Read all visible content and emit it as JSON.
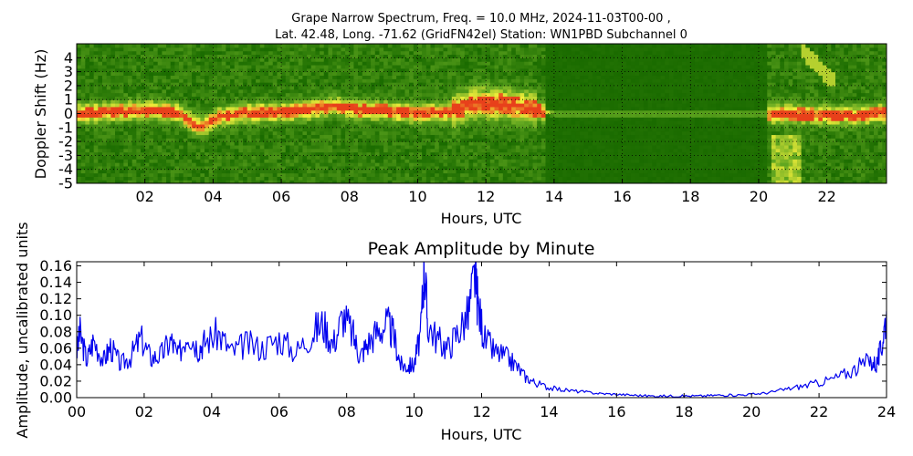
{
  "figure": {
    "title_line1": "Grape Narrow Spectrum, Freq. = 10.0 MHz, 2024-11-03T00-00 ,",
    "title_line2": "Lat.  42.48, Long. -71.62 (GridFN42el) Station: WN1PBD Subchannel 0"
  },
  "chart_data": [
    {
      "type": "heatmap",
      "ylabel": "Doppler Shift (Hz)",
      "xlabel": "Hours, UTC",
      "xlim": [
        0,
        23.75
      ],
      "ylim": [
        -5,
        5
      ],
      "xticks": [
        "02",
        "04",
        "06",
        "08",
        "10",
        "12",
        "14",
        "16",
        "18",
        "20",
        "22"
      ],
      "xtick_values": [
        2,
        4,
        6,
        8,
        10,
        12,
        14,
        16,
        18,
        20,
        22
      ],
      "yticks": [
        "4",
        "3",
        "2",
        "1",
        "0",
        "-1",
        "-2",
        "-3",
        "-4",
        "-5"
      ],
      "ytick_values": [
        4,
        3,
        2,
        1,
        0,
        -1,
        -2,
        -3,
        -4,
        -5
      ],
      "grid": "dotted",
      "colors": {
        "low": "#1a6b00",
        "mid": "#63a821",
        "high": "#f2ee3a",
        "peak": "#e8401b"
      },
      "trace": {
        "hours": [
          0,
          1,
          2,
          3,
          3.6,
          4.2,
          5,
          6,
          7,
          7.5,
          8.3,
          9,
          10,
          11,
          11.7,
          12.5,
          13.5,
          14,
          16,
          18,
          20,
          21,
          22,
          23,
          23.75
        ],
        "doppler": [
          0,
          0.15,
          0.3,
          0.1,
          -1.0,
          -0.2,
          0.1,
          0.1,
          0.35,
          0.6,
          0.25,
          0.25,
          0.0,
          0.15,
          0.8,
          0.7,
          0.3,
          0.0,
          0.0,
          0.0,
          0.0,
          0.0,
          -0.1,
          -0.1,
          0.1
        ]
      }
    },
    {
      "type": "line",
      "title": "Peak Amplitude by Minute",
      "xlabel": "Hours, UTC",
      "ylabel": "Amplitude, uncalibrated units",
      "xlim": [
        0,
        24
      ],
      "ylim": [
        0,
        0.165
      ],
      "xticks": [
        "00",
        "02",
        "04",
        "06",
        "08",
        "10",
        "12",
        "14",
        "16",
        "18",
        "20",
        "22",
        "24"
      ],
      "xtick_values": [
        0,
        2,
        4,
        6,
        8,
        10,
        12,
        14,
        16,
        18,
        20,
        22,
        24
      ],
      "yticks": [
        "0.00",
        "0.02",
        "0.04",
        "0.06",
        "0.08",
        "0.10",
        "0.12",
        "0.14",
        "0.16"
      ],
      "ytick_values": [
        0,
        0.02,
        0.04,
        0.06,
        0.08,
        0.1,
        0.12,
        0.14,
        0.16
      ],
      "color": "#0000ee",
      "series": [
        {
          "x": [
            0,
            0.1,
            0.3,
            0.5,
            0.8,
            1.0,
            1.3,
            1.6,
            1.9,
            2.2,
            2.5,
            2.8,
            3.0,
            3.3,
            3.6,
            3.8,
            4.2,
            4.6,
            5.0,
            5.5,
            6.0,
            6.5,
            7.0,
            7.3,
            7.6,
            7.9,
            8.2,
            8.4,
            8.6,
            8.9,
            9.2,
            9.4,
            9.6,
            9.8,
            10.0,
            10.2,
            10.3,
            10.4,
            10.7,
            11.0,
            11.3,
            11.6,
            11.8,
            11.9,
            12.1,
            12.4,
            12.7,
            13.0,
            13.3,
            13.6,
            14.0,
            14.5,
            15.0,
            15.5,
            16.0,
            16.5,
            17.0,
            17.5,
            18.0,
            18.5,
            19.0,
            19.5,
            20.0,
            20.5,
            21.0,
            21.5,
            22.0,
            22.5,
            23.0,
            23.5,
            23.7,
            23.85,
            24.0
          ],
          "y": [
            0.055,
            0.078,
            0.045,
            0.07,
            0.045,
            0.062,
            0.04,
            0.05,
            0.072,
            0.048,
            0.052,
            0.07,
            0.05,
            0.082,
            0.06,
            0.068,
            0.078,
            0.055,
            0.065,
            0.06,
            0.072,
            0.055,
            0.08,
            0.09,
            0.065,
            0.1,
            0.075,
            0.05,
            0.065,
            0.08,
            0.09,
            0.075,
            0.04,
            0.038,
            0.04,
            0.08,
            0.165,
            0.09,
            0.07,
            0.06,
            0.08,
            0.1,
            0.15,
            0.11,
            0.07,
            0.055,
            0.05,
            0.04,
            0.025,
            0.018,
            0.012,
            0.009,
            0.007,
            0.005,
            0.004,
            0.003,
            0.002,
            0.002,
            0.002,
            0.002,
            0.003,
            0.003,
            0.004,
            0.006,
            0.01,
            0.014,
            0.018,
            0.024,
            0.033,
            0.045,
            0.04,
            0.06,
            0.105
          ]
        }
      ]
    }
  ]
}
